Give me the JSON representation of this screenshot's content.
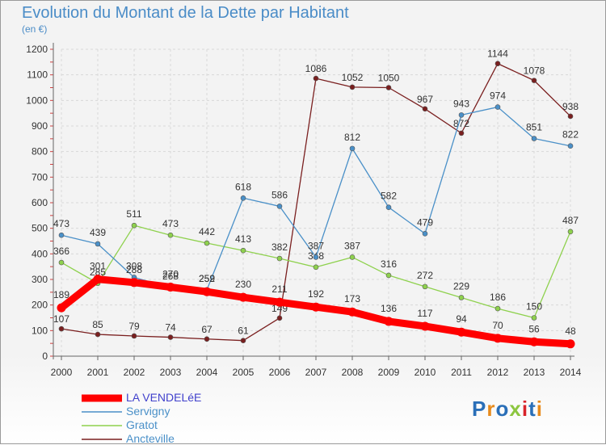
{
  "header": {
    "title": "Evolution du Montant de la Dette par Habitant",
    "subtitle": "(en €)"
  },
  "logo": {
    "text": "Proxiti",
    "colors": [
      "#2a6fb8",
      "#e88b1c",
      "#2a6fb8",
      "#8cc63f",
      "#d8232a",
      "#2a6fb8",
      "#e88b1c"
    ]
  },
  "chart_data": {
    "type": "line",
    "x": [
      "2000",
      "2001",
      "2002",
      "2003",
      "2004",
      "2005",
      "2006",
      "2007",
      "2008",
      "2009",
      "2010",
      "2011",
      "2012",
      "2013",
      "2014"
    ],
    "ylim": [
      0,
      1200
    ],
    "yticks": [
      0,
      100,
      200,
      300,
      400,
      500,
      600,
      700,
      800,
      900,
      1000,
      1100,
      1200
    ],
    "grid": true,
    "legend": "bottom-left",
    "series": [
      {
        "name": "Ancteville",
        "color": "#7a1f1f",
        "labels": true,
        "values": [
          107,
          85,
          79,
          74,
          67,
          61,
          149,
          1086,
          1052,
          1050,
          967,
          872,
          1144,
          1078,
          938
        ]
      },
      {
        "name": "Gratot",
        "color": "#8ed14d",
        "labels": true,
        "values": [
          366,
          285,
          511,
          473,
          442,
          413,
          382,
          348,
          387,
          316,
          272,
          229,
          186,
          150,
          487
        ]
      },
      {
        "name": "Servigny",
        "color": "#4a90c8",
        "labels": true,
        "values": [
          473,
          439,
          308,
          268,
          259,
          618,
          586,
          387,
          812,
          582,
          479,
          943,
          974,
          851,
          822
        ]
      },
      {
        "name": "LA VENDELéE",
        "color": "#ff0000",
        "labels": true,
        "bold": true,
        "values": [
          189,
          301,
          288,
          270,
          252,
          230,
          211,
          192,
          173,
          136,
          117,
          94,
          70,
          56,
          48
        ]
      }
    ],
    "legend_order": [
      "LA VENDELéE",
      "Servigny",
      "Gratot",
      "Ancteville"
    ]
  }
}
